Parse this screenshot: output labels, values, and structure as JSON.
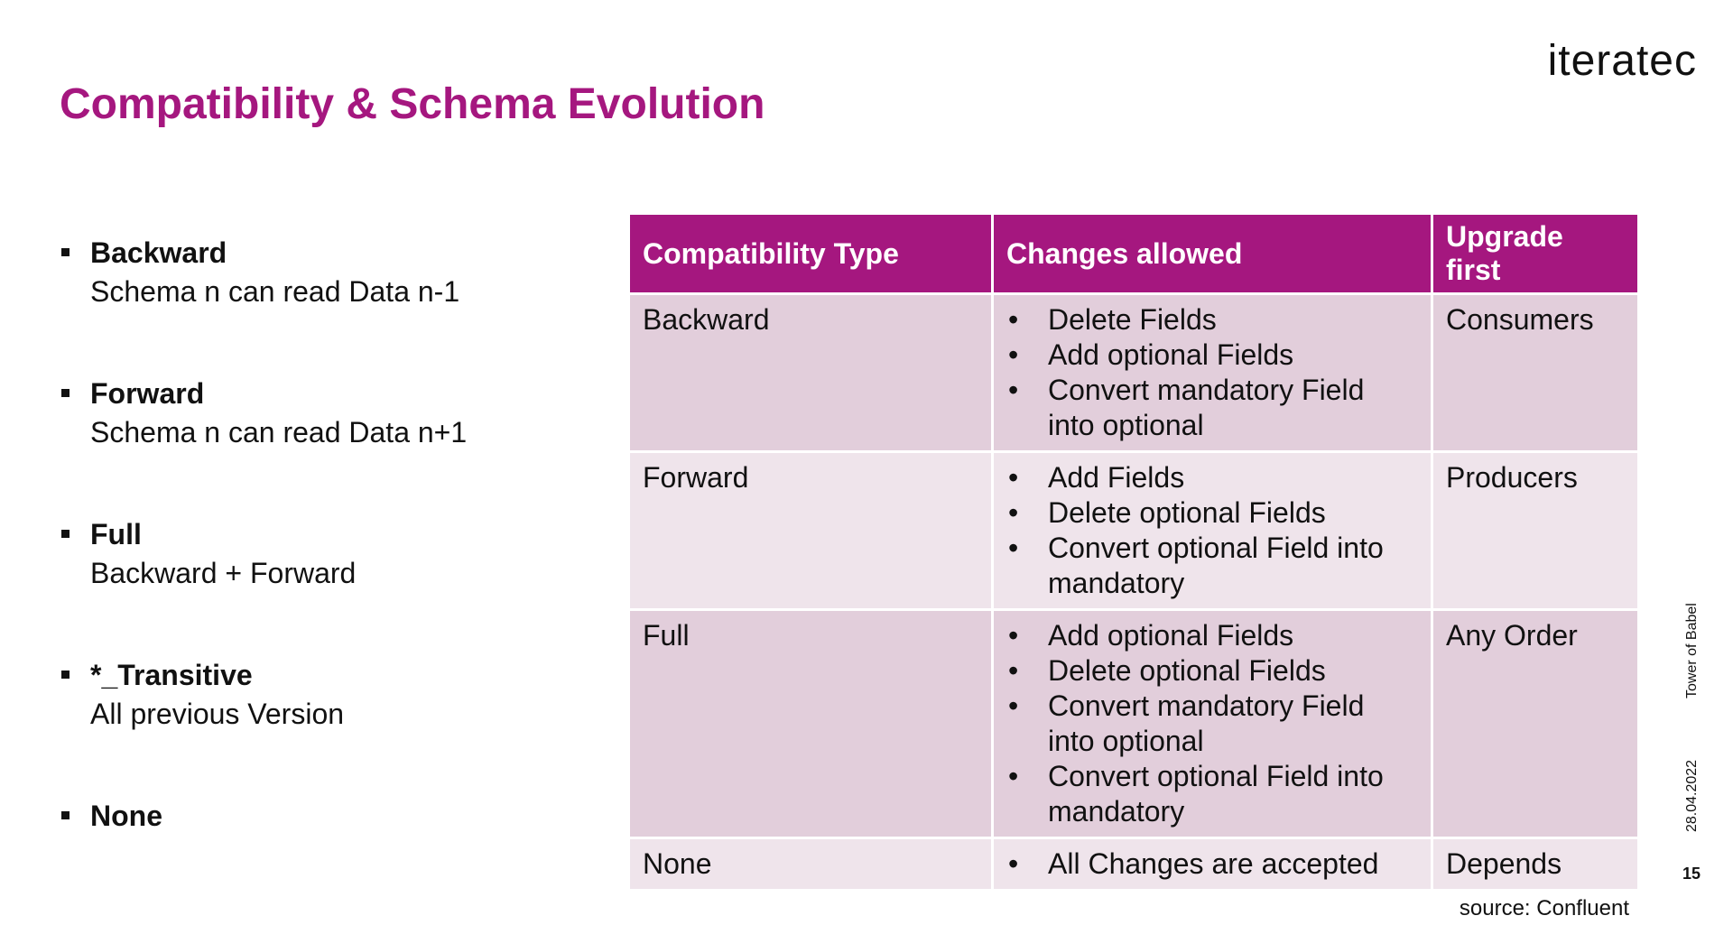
{
  "logo": {
    "text": "iteratec"
  },
  "title": "Compatibility & Schema Evolution",
  "bullets": [
    {
      "title": "Backward",
      "desc": "Schema n can read Data n-1"
    },
    {
      "title": "Forward",
      "desc": "Schema n can read Data n+1"
    },
    {
      "title": "Full",
      "desc": "Backward + Forward"
    },
    {
      "title": "*_Transitive",
      "desc": "All previous Version"
    },
    {
      "title": "None",
      "desc": ""
    }
  ],
  "table": {
    "headers": [
      "Compatibility Type",
      "Changes allowed",
      "Upgrade first"
    ],
    "rows": [
      {
        "type": "Backward",
        "changes": [
          "Delete Fields",
          "Add optional Fields",
          "Convert mandatory Field into optional"
        ],
        "upgrade": "Consumers"
      },
      {
        "type": "Forward",
        "changes": [
          "Add Fields",
          "Delete optional Fields",
          "Convert optional Field into mandatory"
        ],
        "upgrade": "Producers"
      },
      {
        "type": "Full",
        "changes": [
          "Add optional Fields",
          "Delete optional Fields",
          "Convert mandatory Field into optional",
          "Convert optional Field into mandatory"
        ],
        "upgrade": "Any Order"
      },
      {
        "type": "None",
        "changes": [
          "All Changes are accepted"
        ],
        "upgrade": "Depends"
      }
    ]
  },
  "source": "source: Confluent",
  "footer": {
    "event": "Tower of Babel",
    "date": "28.04.2022",
    "page": "15"
  },
  "colors": {
    "accent": "#a5177f",
    "row_dark": "#e2cedb",
    "row_light": "#efe4eb"
  }
}
